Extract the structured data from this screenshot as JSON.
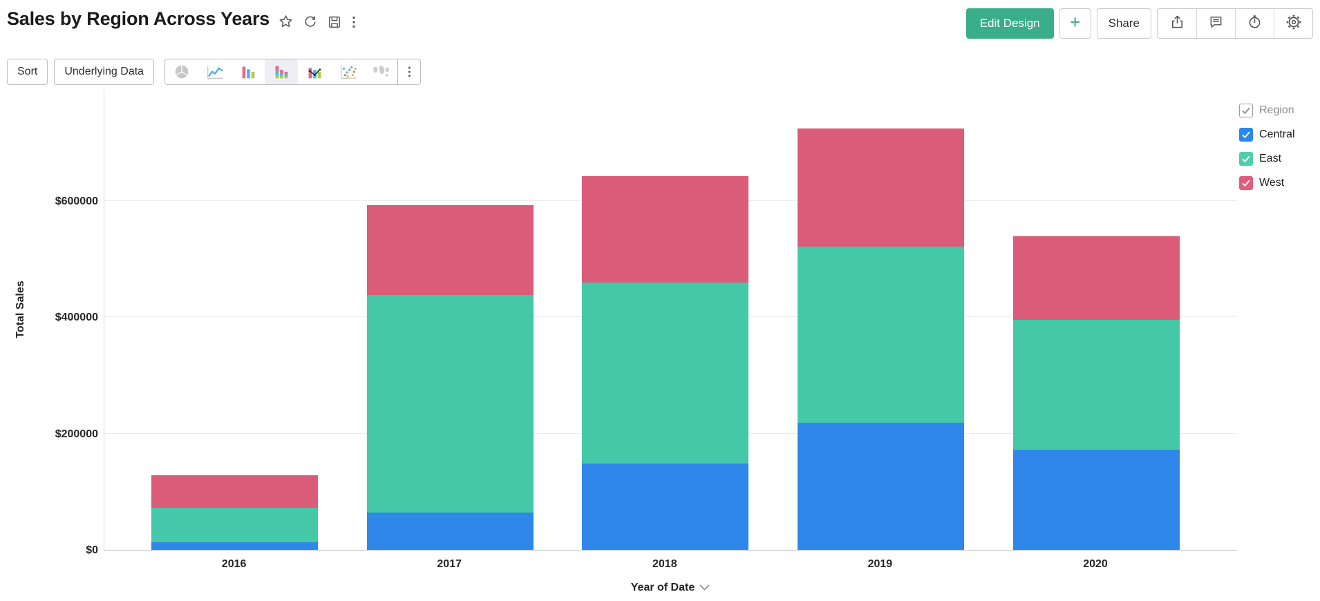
{
  "header": {
    "title": "Sales by Region Across Years",
    "title_icons": [
      "favorite-star-icon",
      "refresh-icon",
      "save-icon",
      "more-vertical-icon"
    ],
    "actions": {
      "edit_design": "Edit Design",
      "plus": "+",
      "share": "Share",
      "icon_buttons": [
        "export-icon",
        "comment-icon",
        "alarm-icon",
        "settings-gear-icon"
      ]
    },
    "accent_green": "#3aae88"
  },
  "toolbar": {
    "sort_label": "Sort",
    "underlying_data_label": "Underlying Data",
    "chart_types": [
      "pie",
      "line",
      "bar",
      "stacked-bar",
      "bar-line-combo",
      "scatter",
      "map"
    ],
    "selected_chart_type": "stacked-bar",
    "more_icon": "more-vertical-icon"
  },
  "legend": {
    "title": "Region",
    "title_checked": true,
    "items": [
      {
        "label": "Central",
        "color": "#2b87ea",
        "checked": true
      },
      {
        "label": "East",
        "color": "#4fceae",
        "checked": true
      },
      {
        "label": "West",
        "color": "#e25d7d",
        "checked": true
      }
    ]
  },
  "chart_data": {
    "type": "bar",
    "stacked": true,
    "title": "Sales by Region Across Years",
    "xlabel": "Year of Date",
    "ylabel": "Total Sales",
    "categories": [
      "2016",
      "2017",
      "2018",
      "2019",
      "2020"
    ],
    "series": [
      {
        "name": "Central",
        "color": "#2e87e9",
        "values": [
          13000,
          64000,
          149000,
          219000,
          172000
        ]
      },
      {
        "name": "East",
        "color": "#45c8a7",
        "values": [
          59000,
          374000,
          311000,
          302000,
          223000
        ]
      },
      {
        "name": "West",
        "color": "#da5c78",
        "values": [
          56000,
          155000,
          182000,
          203000,
          144000
        ]
      }
    ],
    "totals": [
      128000,
      593000,
      642000,
      724000,
      539000
    ],
    "ylim": [
      0,
      792000
    ],
    "yticks": [
      {
        "value": 0,
        "label": "$0"
      },
      {
        "value": 200000,
        "label": "$200000"
      },
      {
        "value": 400000,
        "label": "$400000"
      },
      {
        "value": 600000,
        "label": "$600000"
      }
    ],
    "grid": true,
    "legend_position": "right",
    "currency": "$"
  }
}
